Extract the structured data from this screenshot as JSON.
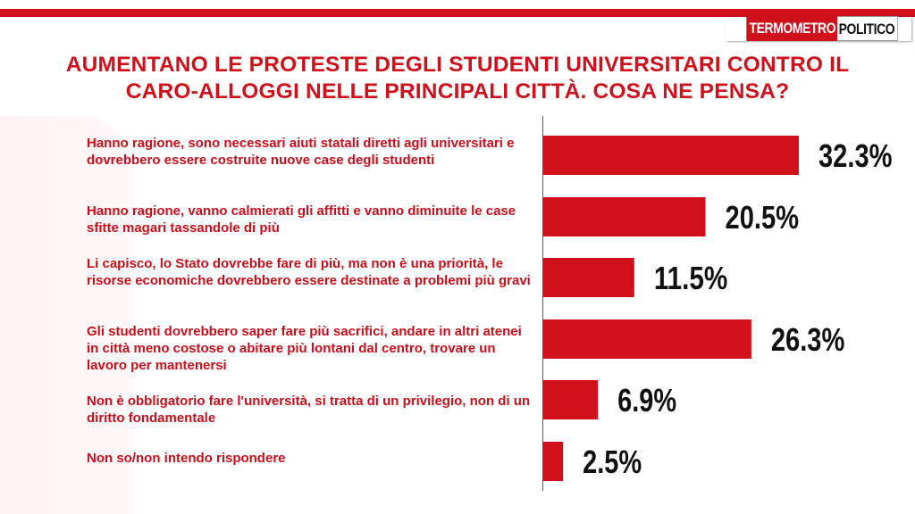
{
  "brand": {
    "part1": "TERMOMETRO",
    "part2": "POLITICO"
  },
  "chart_data": {
    "type": "bar",
    "orientation": "horizontal",
    "title": "AUMENTANO LE PROTESTE DEGLI STUDENTI UNIVERSITARI CONTRO IL CARO-ALLOGGI NELLE PRINCIPALI CITTÀ. COSA NE PENSA?",
    "categories": [
      "Hanno ragione, sono necessari aiuti statali diretti agli universitari e dovrebbero essere costruite nuove case degli studenti",
      "Hanno ragione, vanno calmierati gli affitti e vanno diminuite le case sfitte magari tassandole di più",
      "Li capisco, lo Stato dovrebbe fare di più, ma non è una priorità, le risorse economiche dovrebbero essere destinate a problemi più gravi",
      "Gli studenti dovrebbero saper fare più sacrifici, andare in altri atenei in città  meno costose o abitare più lontani dal centro, trovare un lavoro per mantenersi",
      "Non è obbligatorio fare l'università, si tratta di un privilegio, non di un diritto fondamentale",
      "Non so/non intendo rispondere"
    ],
    "values": [
      32.3,
      20.5,
      11.5,
      26.3,
      6.9,
      2.5
    ],
    "value_labels": [
      "32.3%",
      "20.5%",
      "11.5%",
      "26.3%",
      "6.9%",
      "2.5%"
    ],
    "xlim": [
      0,
      32.3
    ],
    "bar_color": "#d0111b",
    "label_color": "#c8101a",
    "grid": false,
    "legend": "none"
  }
}
